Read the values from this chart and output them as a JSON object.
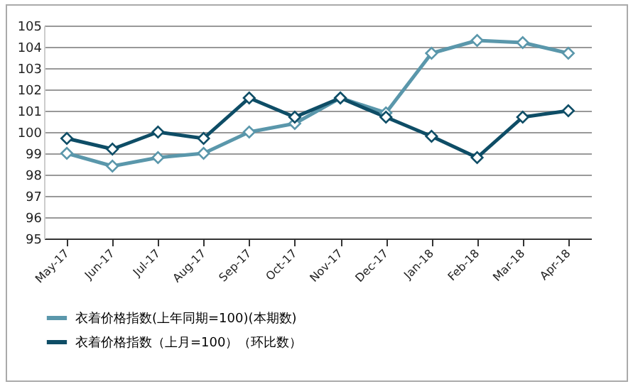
{
  "chart_data": {
    "type": "line",
    "categories": [
      "May-17",
      "Jun-17",
      "Jul-17",
      "Aug-17",
      "Sep-17",
      "Oct-17",
      "Nov-17",
      "Dec-17",
      "Jan-18",
      "Feb-18",
      "Mar-18",
      "Apr-18"
    ],
    "series": [
      {
        "name": "衣着价格指数(上年同期=100)(本期数)",
        "color": "#5a97ab",
        "values": [
          99.0,
          98.4,
          98.8,
          99.0,
          100.0,
          100.4,
          101.6,
          100.9,
          103.7,
          104.3,
          104.2,
          103.7
        ]
      },
      {
        "name": "衣着价格指数（上月=100）（环比数）",
        "color": "#0e4d66",
        "values": [
          99.7,
          99.2,
          100.0,
          99.7,
          101.6,
          100.7,
          101.6,
          100.7,
          99.8,
          98.8,
          100.7,
          101.0
        ]
      }
    ],
    "ylim": [
      95,
      105
    ],
    "yticks": [
      95,
      96,
      97,
      98,
      99,
      100,
      101,
      102,
      103,
      104,
      105
    ],
    "grid": "y",
    "legend": "bottom",
    "marker": "diamond",
    "line_style": "solid"
  }
}
